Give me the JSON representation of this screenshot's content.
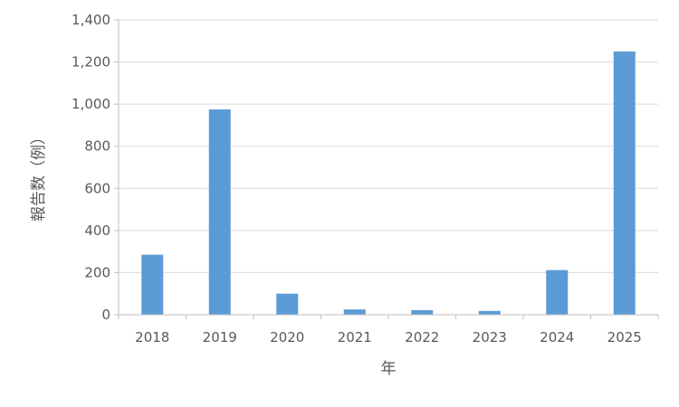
{
  "chart_data": {
    "type": "bar",
    "title": "",
    "xlabel": "年",
    "ylabel": "報告数（例）",
    "categories": [
      "2018",
      "2019",
      "2020",
      "2021",
      "2022",
      "2023",
      "2024",
      "2025"
    ],
    "values": [
      285,
      975,
      100,
      25,
      22,
      18,
      212,
      1250
    ],
    "ylim": [
      0,
      1400
    ],
    "yticks": [
      0,
      200,
      400,
      600,
      800,
      1000,
      1200,
      1400
    ],
    "ytick_labels": [
      "0",
      "200",
      "400",
      "600",
      "800",
      "1,000",
      "1,200",
      "1,400"
    ],
    "grid": true,
    "legend": "none",
    "colors": {
      "bar": "#5b9bd5",
      "grid": "#d9d9d9",
      "axis": "#bfbfbf"
    }
  }
}
